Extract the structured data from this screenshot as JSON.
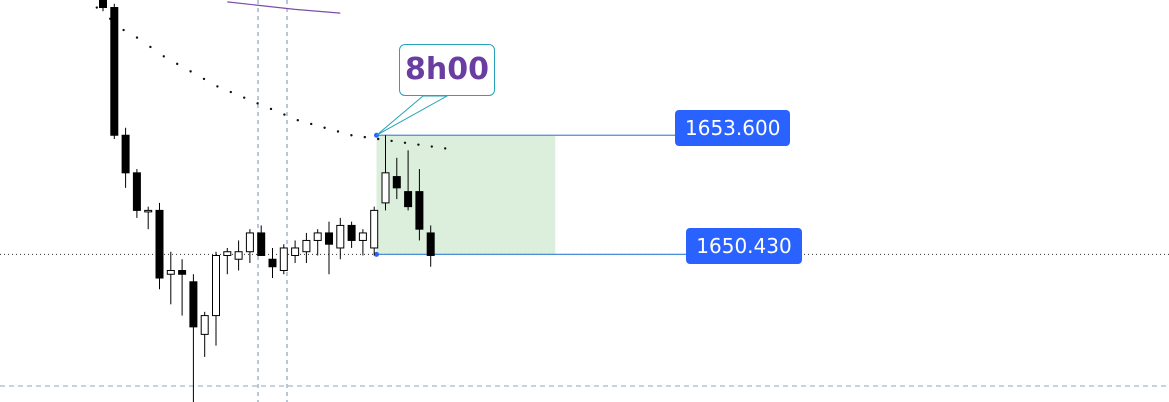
{
  "chart_data": {
    "type": "candlestick",
    "price_labels": {
      "upper": "1653.600",
      "lower": "1650.430"
    },
    "callout_text": "8h00",
    "ylim": [
      1646.5,
      1657.2
    ],
    "last_price": 1650.43,
    "candles": [
      {
        "o": 1657.5,
        "h": 1657.8,
        "l": 1656.9,
        "c": 1657.0
      },
      {
        "o": 1657.0,
        "h": 1657.1,
        "l": 1653.5,
        "c": 1653.6
      },
      {
        "o": 1653.6,
        "h": 1653.8,
        "l": 1652.2,
        "c": 1652.6
      },
      {
        "o": 1652.6,
        "h": 1652.7,
        "l": 1651.4,
        "c": 1651.6
      },
      {
        "o": 1651.6,
        "h": 1651.7,
        "l": 1651.1,
        "c": 1651.6
      },
      {
        "o": 1651.6,
        "h": 1651.8,
        "l": 1649.5,
        "c": 1649.8
      },
      {
        "o": 1649.9,
        "h": 1650.5,
        "l": 1649.1,
        "c": 1650.0
      },
      {
        "o": 1650.0,
        "h": 1650.3,
        "l": 1648.8,
        "c": 1649.9
      },
      {
        "o": 1649.7,
        "h": 1649.9,
        "l": 1646.4,
        "c": 1648.5
      },
      {
        "o": 1648.3,
        "h": 1648.9,
        "l": 1647.7,
        "c": 1648.8
      },
      {
        "o": 1648.8,
        "h": 1650.5,
        "l": 1648.0,
        "c": 1650.4
      },
      {
        "o": 1650.4,
        "h": 1650.6,
        "l": 1649.9,
        "c": 1650.5
      },
      {
        "o": 1650.3,
        "h": 1650.8,
        "l": 1650.0,
        "c": 1650.5
      },
      {
        "o": 1650.5,
        "h": 1651.1,
        "l": 1650.2,
        "c": 1651.0
      },
      {
        "o": 1651.0,
        "h": 1651.2,
        "l": 1650.5,
        "c": 1650.4
      },
      {
        "o": 1650.3,
        "h": 1650.6,
        "l": 1649.8,
        "c": 1650.1
      },
      {
        "o": 1650.0,
        "h": 1650.7,
        "l": 1649.9,
        "c": 1650.6
      },
      {
        "o": 1650.4,
        "h": 1650.8,
        "l": 1650.2,
        "c": 1650.6
      },
      {
        "o": 1650.5,
        "h": 1651.0,
        "l": 1650.2,
        "c": 1650.8
      },
      {
        "o": 1650.8,
        "h": 1651.1,
        "l": 1650.4,
        "c": 1651.0
      },
      {
        "o": 1651.0,
        "h": 1651.3,
        "l": 1649.9,
        "c": 1650.7
      },
      {
        "o": 1650.6,
        "h": 1651.4,
        "l": 1650.3,
        "c": 1651.2
      },
      {
        "o": 1651.2,
        "h": 1651.3,
        "l": 1650.6,
        "c": 1650.8
      },
      {
        "o": 1650.8,
        "h": 1651.1,
        "l": 1650.4,
        "c": 1651.0
      },
      {
        "o": 1650.6,
        "h": 1651.7,
        "l": 1650.4,
        "c": 1651.6
      },
      {
        "o": 1651.8,
        "h": 1653.6,
        "l": 1651.6,
        "c": 1652.6
      },
      {
        "o": 1652.5,
        "h": 1653.0,
        "l": 1651.9,
        "c": 1652.2
      },
      {
        "o": 1652.1,
        "h": 1653.2,
        "l": 1651.6,
        "c": 1651.7
      },
      {
        "o": 1652.1,
        "h": 1652.7,
        "l": 1650.8,
        "c": 1651.1
      },
      {
        "o": 1651.0,
        "h": 1651.2,
        "l": 1650.1,
        "c": 1650.4
      }
    ],
    "ma_dots": [
      [
        0,
        1657.6
      ],
      [
        1,
        1657.3
      ],
      [
        2,
        1657.0
      ],
      [
        3,
        1656.7
      ],
      [
        4,
        1656.4
      ],
      [
        5,
        1656.2
      ],
      [
        6,
        1655.95
      ],
      [
        7,
        1655.7
      ],
      [
        8,
        1655.5
      ],
      [
        9,
        1655.3
      ],
      [
        10,
        1655.1
      ],
      [
        11,
        1654.9
      ],
      [
        12,
        1654.75
      ],
      [
        13,
        1654.6
      ],
      [
        14,
        1654.45
      ],
      [
        15,
        1654.3
      ],
      [
        16,
        1654.15
      ],
      [
        17,
        1654.0
      ],
      [
        18,
        1653.9
      ],
      [
        19,
        1653.8
      ],
      [
        20,
        1653.7
      ],
      [
        21,
        1653.6
      ],
      [
        22,
        1653.55
      ],
      [
        23,
        1653.5
      ],
      [
        24,
        1653.45
      ],
      [
        25,
        1653.4
      ],
      [
        26,
        1653.35
      ],
      [
        27,
        1653.3
      ],
      [
        28,
        1653.25
      ]
    ],
    "purple_ma": [
      [
        11.0,
        1657.15
      ],
      [
        14.0,
        1657.05
      ],
      [
        17.0,
        1656.95
      ],
      [
        21.0,
        1656.85
      ]
    ],
    "zone": {
      "from_index": 25,
      "to_index": 41,
      "top": 1653.6,
      "bottom": 1650.43
    },
    "colors": {
      "bull_fill": "#ffffff",
      "bear_fill": "#000000",
      "candle_stroke": "#000000",
      "zone_fill": "#dcefdc",
      "ray": "#4d8ed8",
      "accent_blue": "#2962ff",
      "callout_border": "#26a3b8",
      "callout_text": "#6a3ea1",
      "purple_ma": "#7b4fa8",
      "grid": "#6f8fb3"
    }
  }
}
